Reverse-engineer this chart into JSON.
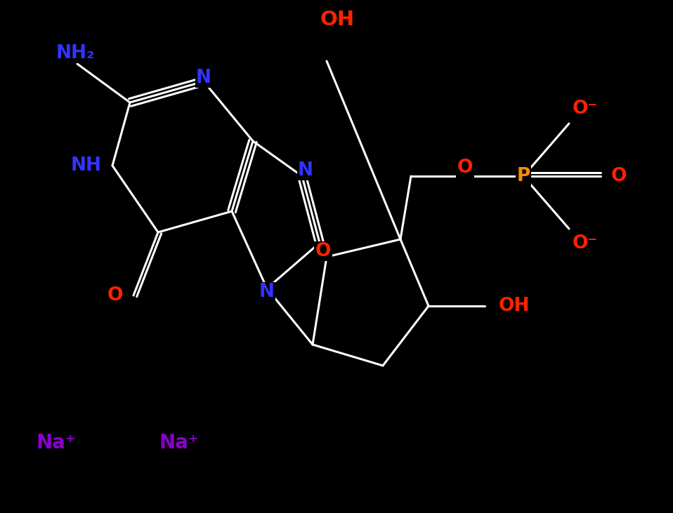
{
  "background_color": "#000000",
  "bond_color": "#ffffff",
  "bond_lw": 2.2,
  "figsize": [
    9.58,
    7.31
  ],
  "dpi": 100,
  "blue": "#3333ff",
  "red": "#ff2200",
  "orange": "#ff8c00",
  "purple": "#8800cc",
  "xlim": [
    0,
    9.58
  ],
  "ylim": [
    0,
    7.31
  ]
}
